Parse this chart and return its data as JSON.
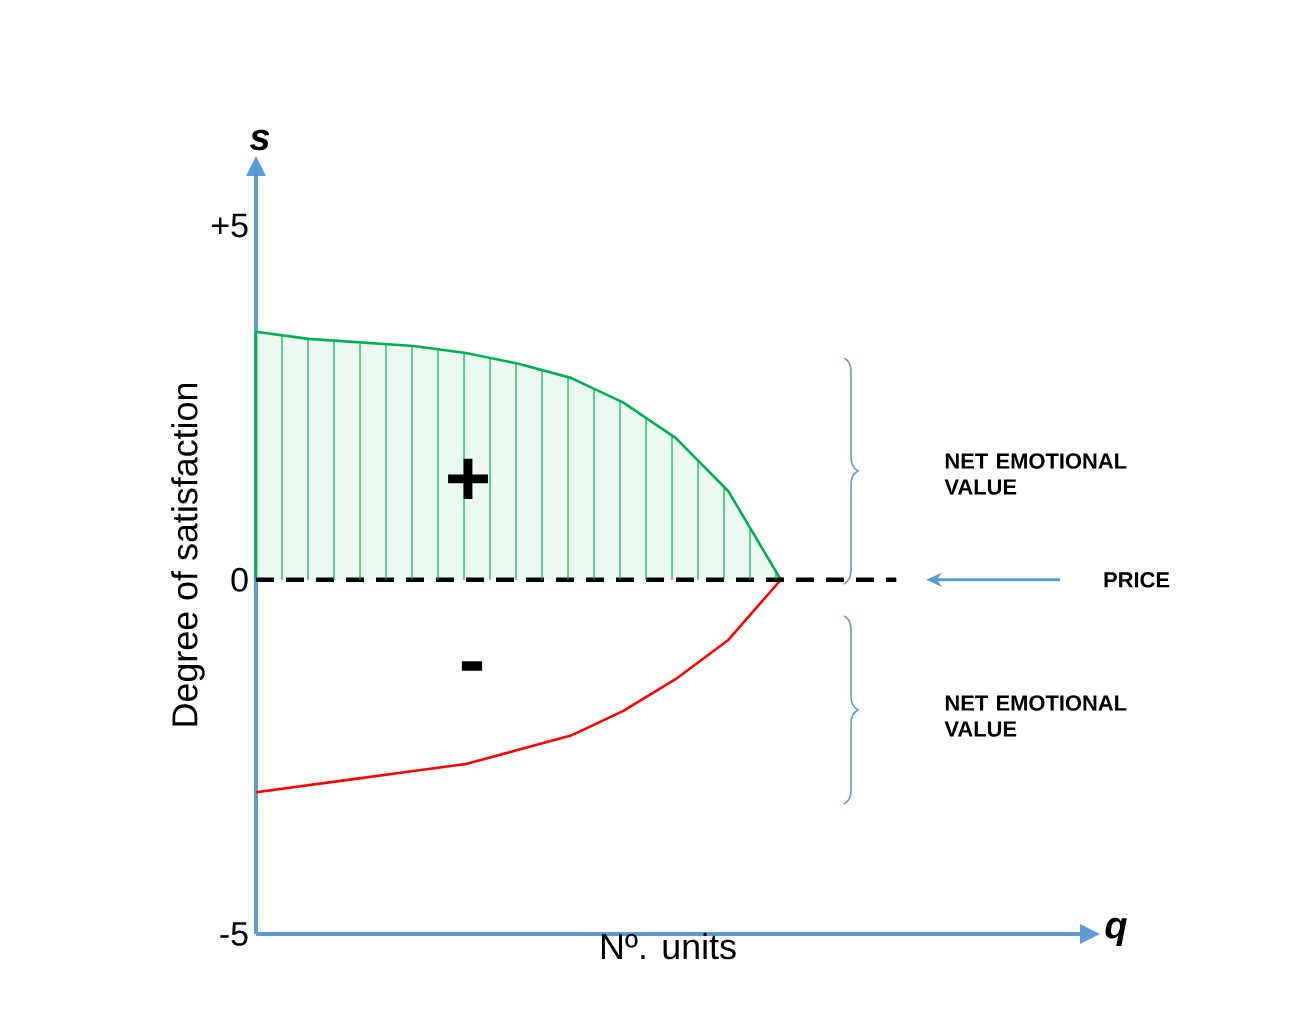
{
  "chart_data": {
    "type": "line",
    "xlabel": "Nº. units",
    "ylabel": "Degree of satisfaction",
    "categories": [
      null,
      null,
      null,
      null,
      null,
      null,
      null,
      null,
      null,
      null,
      null
    ],
    "ylim": [
      -5,
      5.7
    ],
    "yticks": [
      {
        "value": 5,
        "label": "+5"
      },
      0,
      -5
    ],
    "series": [
      {
        "type": "area",
        "color": "#00b050",
        "values": [
          3.5,
          3.4,
          3.35,
          3.3,
          3.2,
          3.05,
          2.85,
          2.5,
          2.0,
          1.25,
          0
        ]
      },
      {
        "color": "#ff0000",
        "values": [
          -3.0,
          -2.9,
          -2.8,
          -2.7,
          -2.6,
          -2.4,
          -2.2,
          -1.85,
          -1.4,
          -0.85,
          0
        ]
      }
    ],
    "ref_lines": [
      {
        "axis": "y",
        "value": 0,
        "label": "PRICE",
        "color": "#000000",
        "line_style": "dashed"
      }
    ],
    "annotations": [
      "+",
      "-",
      "NET EMOTIONAL VALUE",
      "NET EMOTIONAL VALUE",
      "s",
      "q"
    ]
  }
}
